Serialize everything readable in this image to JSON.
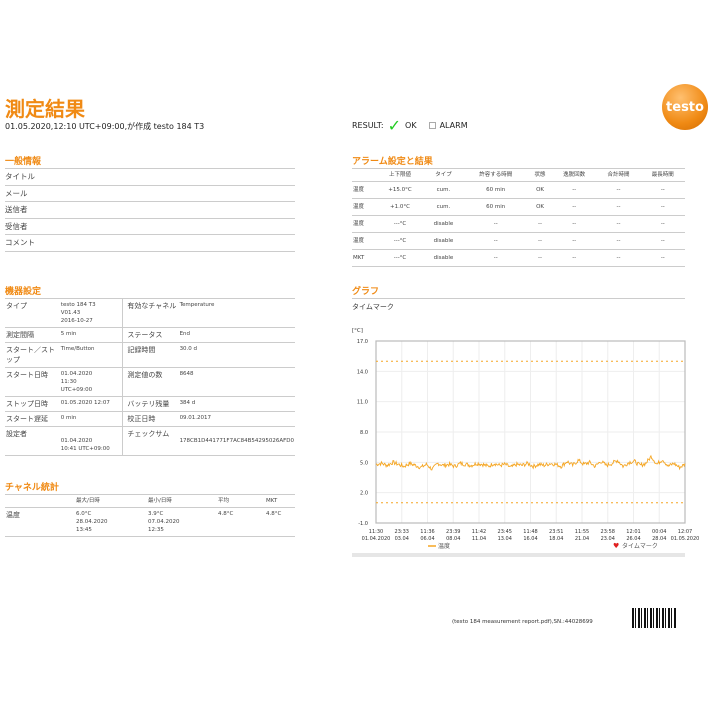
{
  "header": {
    "title": "測定結果",
    "subtitle": "01.05.2020,12:10 UTC+09:00,が作成 testo 184 T3",
    "result_label": "RESULT:",
    "ok": "OK",
    "alarm": "ALARM",
    "logo": "testo",
    "result_status": "OK",
    "colors": {
      "accent": "#f08a14",
      "ok": "#22cc22"
    }
  },
  "general": {
    "heading": "一般情報",
    "rows": [
      "タイトル",
      "メール",
      "送信者",
      "受信者",
      "コメント"
    ]
  },
  "device": {
    "heading": "機器設定",
    "rows": [
      {
        "l1": "タイプ",
        "v1": "testo 184 T3\nV01.43\n2016-10-27",
        "l2": "有効なチャネル",
        "v2": "Temperature"
      },
      {
        "l1": "測定間隔",
        "v1": "5 min",
        "l2": "ステータス",
        "v2": "End"
      },
      {
        "l1": "スタート／ストップ",
        "v1": "Time/Button",
        "l2": "記録時間",
        "v2": "30.0 d"
      },
      {
        "l1": "スタート日時",
        "v1": "01.04.2020\n11:30\nUTC+09:00",
        "l2": "測定値の数",
        "v2": "8648"
      },
      {
        "l1": "ストップ日時",
        "v1": "01.05.2020 12:07",
        "l2": "バッテリ残量",
        "v2": "384 d"
      },
      {
        "l1": "スタート遅延",
        "v1": "0 min",
        "l2": "校正日時",
        "v2": "09.01.2017"
      },
      {
        "l1": "設定者",
        "v1": "\n01.04.2020\n10:41 UTC+09:00",
        "l2": "チェックサム",
        "v2": "\n178CB1D441771F7AC84B54295026AFD0"
      }
    ]
  },
  "stats": {
    "heading": "チャネル統計",
    "headers": [
      "",
      "最大/日時",
      "最小/日時",
      "平均",
      "MKT"
    ],
    "rows": [
      [
        "温度",
        "6.0°C\n28.04.2020\n13:45",
        "3.9°C\n07.04.2020\n12:35",
        "4.8°C",
        "4.8°C"
      ]
    ]
  },
  "alarm": {
    "heading": "アラーム設定と結果",
    "headers": [
      "",
      "上下限値",
      "タイプ",
      "許容する時間",
      "状態",
      "逸脱回数",
      "合計時間",
      "最長時間"
    ],
    "rows": [
      [
        "温度",
        "+15.0°C",
        "cum.",
        "60 min",
        "OK",
        "--",
        "--",
        "--"
      ],
      [
        "温度",
        "+1.0°C",
        "cum.",
        "60 min",
        "OK",
        "--",
        "--",
        "--"
      ],
      [
        "温度",
        "---°C",
        "disable",
        "--",
        "--",
        "--",
        "--",
        "--"
      ],
      [
        "温度",
        "---°C",
        "disable",
        "--",
        "--",
        "--",
        "--",
        "--"
      ],
      [
        "MKT",
        "---°C",
        "disable",
        "--",
        "--",
        "--",
        "--",
        "--"
      ]
    ]
  },
  "graph": {
    "heading": "グラフ",
    "timemark": "タイムマーク"
  },
  "chart_data": {
    "type": "line",
    "ylabel": "[°C]",
    "ylim": [
      -1.0,
      17.0
    ],
    "yticks": [
      "17.0",
      "14.0",
      "11.0",
      "8.0",
      "5.0",
      "2.0",
      "-1.0"
    ],
    "xticks": [
      [
        "11:30",
        "01.04.2020"
      ],
      [
        "23:33",
        "03.04"
      ],
      [
        "11:36",
        "06.04"
      ],
      [
        "23:39",
        "08.04"
      ],
      [
        "11:42",
        "11.04"
      ],
      [
        "23:45",
        "13.04"
      ],
      [
        "11:48",
        "16.04"
      ],
      [
        "23:51",
        "18.04"
      ],
      [
        "11:55",
        "21.04"
      ],
      [
        "23:58",
        "23.04"
      ],
      [
        "12:01",
        "26.04"
      ],
      [
        "00:04",
        "28.04"
      ],
      [
        "12:07",
        "01.05.2020"
      ]
    ],
    "limits": [
      15.0,
      1.0
    ],
    "grid": true,
    "legend_placement": "bottom",
    "series": [
      {
        "name": "温度",
        "color": "#f5a623",
        "values": [
          4.8,
          4.9,
          4.7,
          5.0,
          4.8,
          4.6,
          4.9,
          4.7,
          4.5,
          4.8,
          4.3,
          4.9,
          4.7,
          4.8,
          4.6,
          4.9,
          4.8,
          4.7,
          4.9,
          4.8,
          4.6,
          4.9,
          4.7,
          4.8,
          4.5,
          4.8,
          4.7,
          4.9,
          4.6,
          4.8,
          4.7,
          4.9,
          4.8,
          4.6,
          5.1,
          4.7,
          5.2,
          4.8,
          5.0,
          4.6,
          5.1,
          4.7,
          4.9,
          5.2,
          4.6,
          5.0,
          5.1,
          4.7,
          4.9,
          5.6,
          4.8,
          5.3,
          4.6,
          4.9,
          4.5,
          4.8
        ]
      }
    ],
    "legend": [
      "温度",
      "タイムマーク"
    ]
  },
  "footer": {
    "text": "(testo 184 measurement report.pdf),SN.:44028699"
  }
}
